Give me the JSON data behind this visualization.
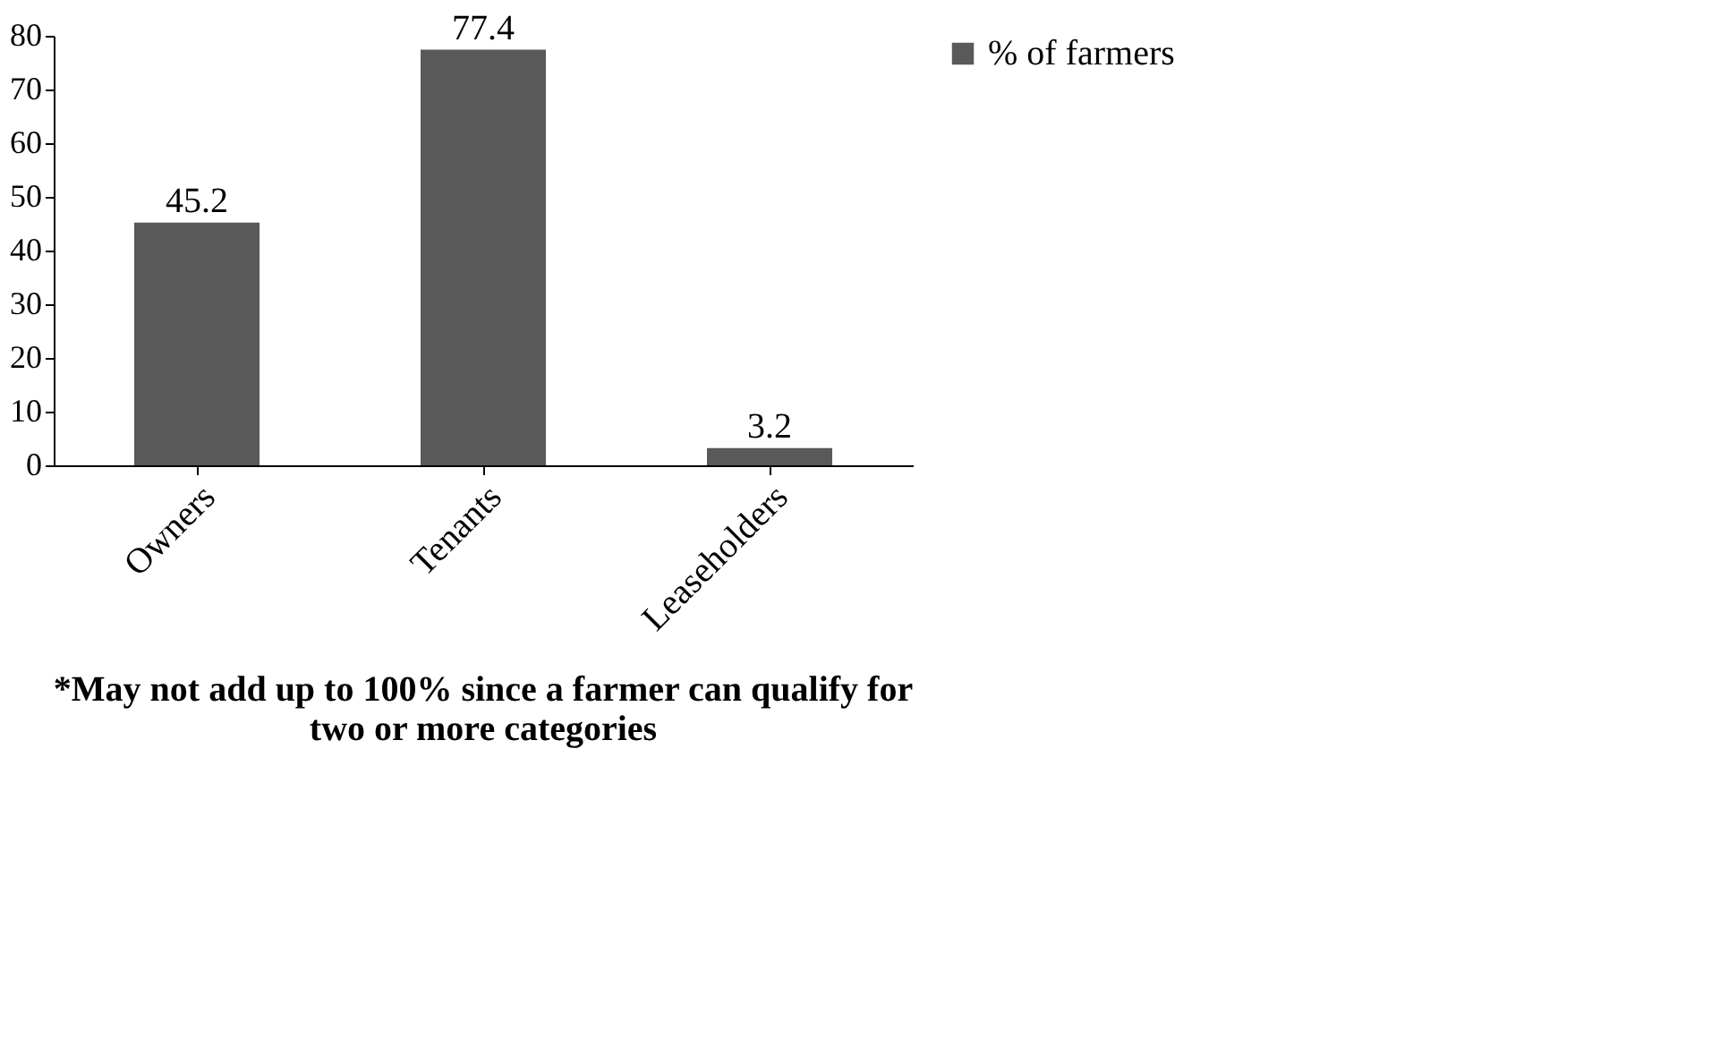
{
  "chart_data": {
    "type": "bar",
    "categories": [
      "Owners",
      "Tenants",
      "Leaseholders"
    ],
    "series": [
      {
        "name": "% of farmers",
        "color": "#595959",
        "values": [
          45.2,
          77.4,
          3.2
        ]
      }
    ],
    "ylim": [
      0,
      80
    ],
    "yticks": [
      0,
      10,
      20,
      30,
      40,
      50,
      60,
      70,
      80
    ],
    "grid": false,
    "legend": "right",
    "data_labels": true,
    "annotations": [
      "*May not add up to 100% since a farmer can qualify for two or more categories"
    ]
  }
}
